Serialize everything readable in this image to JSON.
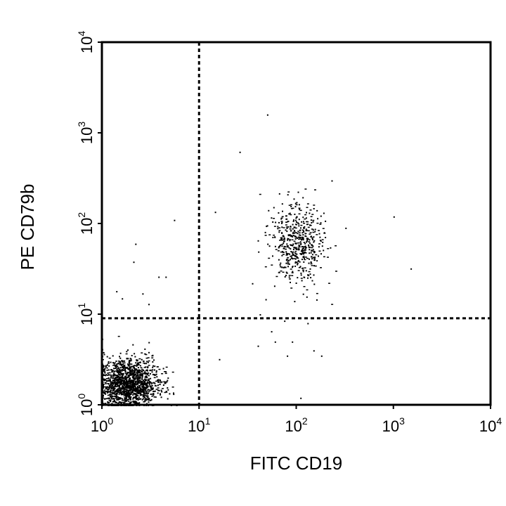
{
  "chart_data": {
    "type": "scatter",
    "xlabel": "FITC CD19",
    "ylabel": "PE CD79b",
    "x_scale": "log",
    "y_scale": "log",
    "xlim": [
      1,
      10000
    ],
    "ylim": [
      1,
      10000
    ],
    "x_ticks": [
      {
        "base": "10",
        "exp": "0",
        "value": 1
      },
      {
        "base": "10",
        "exp": "1",
        "value": 10
      },
      {
        "base": "10",
        "exp": "2",
        "value": 100
      },
      {
        "base": "10",
        "exp": "3",
        "value": 1000
      },
      {
        "base": "10",
        "exp": "4",
        "value": 10000
      }
    ],
    "y_ticks": [
      {
        "base": "10",
        "exp": "0",
        "value": 1
      },
      {
        "base": "10",
        "exp": "1",
        "value": 10
      },
      {
        "base": "10",
        "exp": "2",
        "value": 100
      },
      {
        "base": "10",
        "exp": "3",
        "value": 1000
      },
      {
        "base": "10",
        "exp": "4",
        "value": 10000
      }
    ],
    "gates": {
      "x": 10,
      "y": 9,
      "style": "dashed"
    },
    "grid": false,
    "legend": "none",
    "populations": [
      {
        "quadrant": "lower-left",
        "center": [
          1.8,
          1.7
        ],
        "spread_log": [
          0.16,
          0.14
        ],
        "count": 1500
      },
      {
        "quadrant": "upper-right",
        "center": [
          100,
          60
        ],
        "spread_log": [
          0.14,
          0.22
        ],
        "count": 520
      }
    ],
    "scattered_points": [
      [
        50,
        1600
      ],
      [
        26,
        620
      ],
      [
        1000,
        120
      ],
      [
        1500,
        32
      ],
      [
        320,
        90
      ],
      [
        16,
        3.2
      ],
      [
        5.5,
        110
      ],
      [
        2.2,
        60
      ],
      [
        2.1,
        38
      ],
      [
        4.5,
        26
      ],
      [
        3.8,
        26
      ],
      [
        3.0,
        13
      ],
      [
        1.6,
        15
      ],
      [
        14.5,
        135
      ],
      [
        110,
        1.2
      ],
      [
        90,
        5
      ],
      [
        60,
        5
      ],
      [
        40,
        4.5
      ],
      [
        150,
        4
      ],
      [
        180,
        3.5
      ],
      [
        130,
        8
      ],
      [
        230,
        300
      ],
      [
        80,
        3.5
      ],
      [
        55,
        6.5
      ],
      [
        75,
        8.5
      ],
      [
        42,
        10
      ],
      [
        35,
        22
      ],
      [
        95,
        14
      ],
      [
        2.6,
        17
      ],
      [
        1.4,
        18
      ]
    ]
  }
}
